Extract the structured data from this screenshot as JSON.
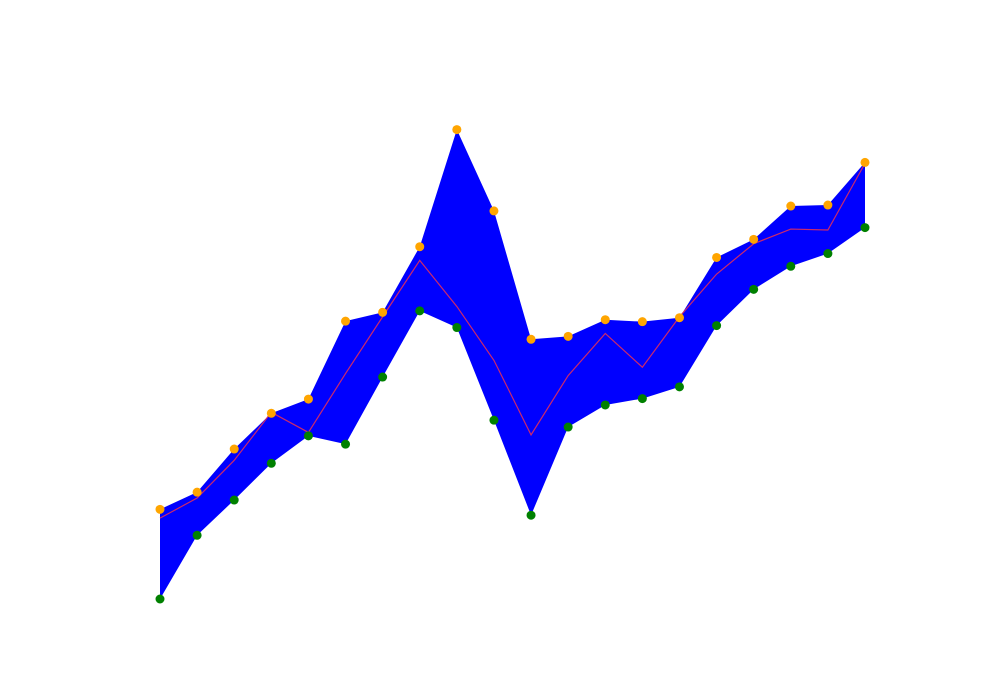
{
  "chart_data": {
    "type": "area",
    "title": "",
    "xlabel": "",
    "ylabel": "",
    "axes_visible": false,
    "grid": false,
    "legend": "none",
    "x": [
      0,
      1,
      2,
      3,
      4,
      5,
      6,
      7,
      8,
      9,
      10,
      11,
      12,
      13,
      14,
      15,
      16,
      17,
      18,
      19
    ],
    "xlim": [
      0,
      19
    ],
    "ylim": [
      0,
      100
    ],
    "upper": [
      18.3,
      21.8,
      30.6,
      37.9,
      40.8,
      56.7,
      58.5,
      71.9,
      95.8,
      79.2,
      53.0,
      53.6,
      57.0,
      56.6,
      57.4,
      69.7,
      73.4,
      80.2,
      80.4,
      89.1
    ],
    "lower": [
      0.0,
      13.0,
      20.2,
      27.7,
      33.3,
      31.6,
      45.3,
      58.8,
      55.4,
      36.5,
      17.1,
      35.1,
      39.6,
      40.9,
      43.3,
      55.8,
      63.2,
      67.9,
      70.5,
      75.8
    ],
    "middle": [
      16.5,
      20.6,
      28.3,
      38.1,
      34.0,
      46.0,
      57.6,
      69.1,
      59.7,
      48.7,
      33.5,
      45.6,
      54.2,
      47.3,
      57.6,
      66.3,
      72.5,
      75.5,
      75.3,
      88.9
    ],
    "colors": {
      "band": "#0000ff",
      "upper_markers": "#ffa500",
      "lower_markers": "#008000",
      "middle_line": "#cc2a6a"
    }
  }
}
